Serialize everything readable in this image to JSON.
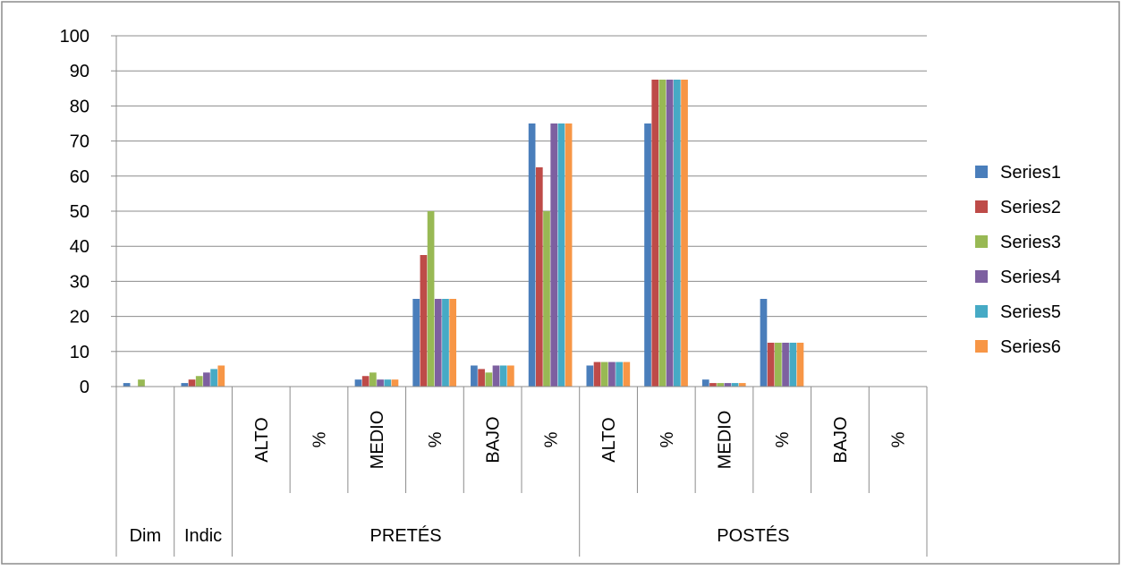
{
  "chart_data": {
    "type": "bar",
    "title": "",
    "xlabel": "",
    "ylabel": "",
    "ylim": [
      0,
      100
    ],
    "yticks": [
      0,
      10,
      20,
      30,
      40,
      50,
      60,
      70,
      80,
      90,
      100
    ],
    "grid": true,
    "legend_position": "right",
    "categories": [
      {
        "label": "",
        "rotated": false
      },
      {
        "label": "",
        "rotated": false
      },
      {
        "label": "ALTO",
        "rotated": true
      },
      {
        "label": "%",
        "rotated": true
      },
      {
        "label": "MEDIO",
        "rotated": true
      },
      {
        "label": "%",
        "rotated": true
      },
      {
        "label": "BAJO",
        "rotated": true
      },
      {
        "label": "%",
        "rotated": true
      },
      {
        "label": "ALTO",
        "rotated": true
      },
      {
        "label": "%",
        "rotated": true
      },
      {
        "label": "MEDIO",
        "rotated": true
      },
      {
        "label": "%",
        "rotated": true
      },
      {
        "label": "BAJO",
        "rotated": true
      },
      {
        "label": "%",
        "rotated": true
      }
    ],
    "groups": [
      {
        "label": "Dim",
        "span": 1
      },
      {
        "label": "Indic",
        "span": 1
      },
      {
        "label": "PRETÉS",
        "span": 6
      },
      {
        "label": "POSTÉS",
        "span": 6
      }
    ],
    "series": [
      {
        "name": "Series1",
        "color": "#4a7ebb",
        "values": [
          1,
          1,
          0,
          0,
          2,
          25,
          6,
          75,
          6,
          75,
          2,
          25,
          0,
          0
        ]
      },
      {
        "name": "Series2",
        "color": "#be4b48",
        "values": [
          0,
          2,
          0,
          0,
          3,
          37.5,
          5,
          62.5,
          7,
          87.5,
          1,
          12.5,
          0,
          0
        ]
      },
      {
        "name": "Series3",
        "color": "#98b954",
        "values": [
          2,
          3,
          0,
          0,
          4,
          50,
          4,
          50,
          7,
          87.5,
          1,
          12.5,
          0,
          0
        ]
      },
      {
        "name": "Series4",
        "color": "#7d60a0",
        "values": [
          0,
          4,
          0,
          0,
          2,
          25,
          6,
          75,
          7,
          87.5,
          1,
          12.5,
          0,
          0
        ]
      },
      {
        "name": "Series5",
        "color": "#46aac5",
        "values": [
          0,
          5,
          0,
          0,
          2,
          25,
          6,
          75,
          7,
          87.5,
          1,
          12.5,
          0,
          0
        ]
      },
      {
        "name": "Series6",
        "color": "#f79646",
        "values": [
          0,
          6,
          0,
          0,
          2,
          25,
          6,
          75,
          7,
          87.5,
          1,
          12.5,
          0,
          0
        ]
      }
    ]
  }
}
